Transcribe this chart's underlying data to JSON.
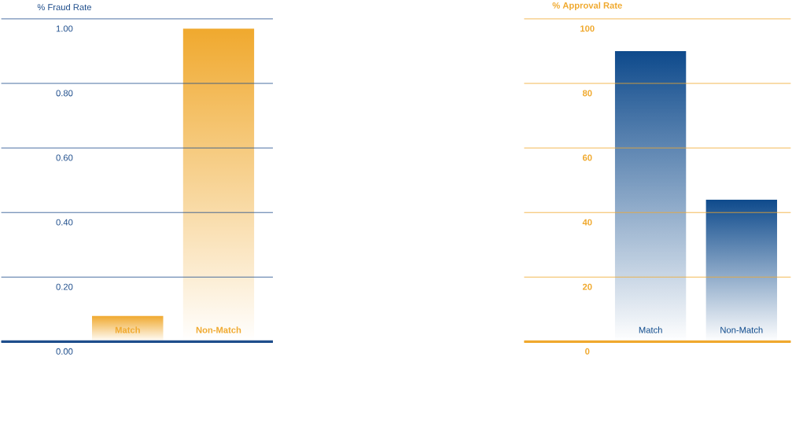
{
  "chart_data": [
    {
      "type": "bar",
      "title": "% Fraud Rate",
      "categories": [
        "Match",
        "Non-Match"
      ],
      "values": [
        0.08,
        0.97
      ],
      "color": "#f0a92e",
      "ylim": [
        0,
        1
      ],
      "yticks": [
        {
          "value": 0,
          "label": "0.00"
        },
        {
          "value": 0.2,
          "label": "0.20"
        },
        {
          "value": 0.4,
          "label": "0.40"
        },
        {
          "value": 0.6,
          "label": "0.60"
        },
        {
          "value": 0.8,
          "label": "0.80"
        },
        {
          "value": 1,
          "label": "1.00"
        }
      ],
      "grid": "y"
    },
    {
      "type": "bar",
      "title": "% Approval Rate",
      "categories": [
        "Match",
        "Non-Match"
      ],
      "values": [
        90,
        44
      ],
      "color": "#0e4a8c",
      "ylim": [
        0,
        100
      ],
      "yticks": [
        0,
        20,
        40,
        60,
        80,
        100
      ],
      "grid": "y"
    }
  ]
}
